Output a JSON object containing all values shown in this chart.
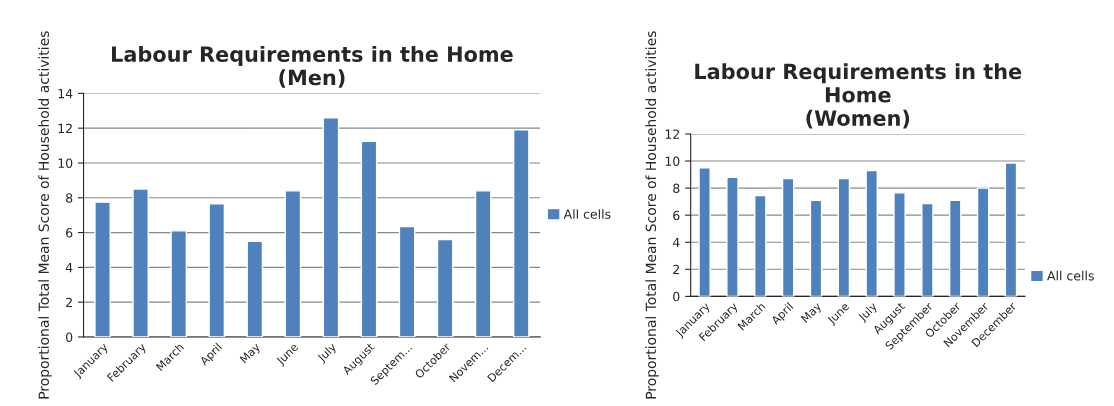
{
  "chart_data": [
    {
      "type": "bar",
      "title": "Labour Requirements in the Home\n(Men)",
      "ylabel": "Proportional Total Mean Score of Household activities",
      "categories": [
        "January",
        "February",
        "March",
        "April",
        "May",
        "June",
        "July",
        "August",
        "Septem...",
        "October",
        "Novem...",
        "Decem..."
      ],
      "series": [
        {
          "name": "All cells",
          "color": "#4f81bd",
          "values": [
            7.75,
            8.5,
            6.1,
            7.65,
            5.5,
            8.4,
            12.6,
            11.25,
            6.35,
            5.6,
            8.4,
            11.9
          ]
        }
      ],
      "ylim": [
        0,
        14
      ],
      "yticks": [
        0,
        2,
        4,
        6,
        8,
        10,
        12,
        14
      ],
      "grid": "y",
      "legend": "right"
    },
    {
      "type": "bar",
      "title": "Labour Requirements in the\nHome\n(Women)",
      "ylabel": "Proportional Total Mean Score of Household activities",
      "categories": [
        "January",
        "February",
        "March",
        "April",
        "May",
        "June",
        "July",
        "August",
        "September",
        "October",
        "November",
        "December"
      ],
      "series": [
        {
          "name": "All cells",
          "color": "#4f81bd",
          "values": [
            9.5,
            8.8,
            7.45,
            8.7,
            7.1,
            8.7,
            9.3,
            7.65,
            6.85,
            7.1,
            8.0,
            9.85
          ]
        }
      ],
      "ylim": [
        0,
        12
      ],
      "yticks": [
        0,
        2,
        4,
        6,
        8,
        10,
        12
      ],
      "grid": "y",
      "legend": "bottom right"
    }
  ]
}
